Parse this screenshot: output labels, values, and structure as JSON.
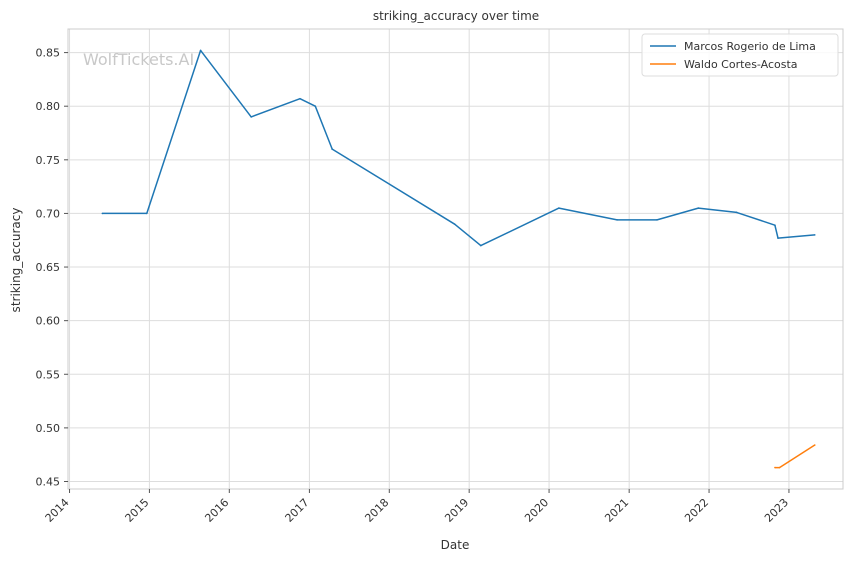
{
  "chart_data": {
    "type": "line",
    "title": "striking_accuracy over time",
    "xlabel": "Date",
    "ylabel": "striking_accuracy",
    "watermark": "WolfTickets.AI",
    "xlim": [
      "2013-12-25",
      "2023-09-05"
    ],
    "ylim": [
      0.443,
      0.872
    ],
    "x_ticks": [
      "2014",
      "2015",
      "2016",
      "2017",
      "2018",
      "2019",
      "2020",
      "2021",
      "2022",
      "2023"
    ],
    "y_ticks": [
      "0.45",
      "0.50",
      "0.55",
      "0.60",
      "0.65",
      "0.70",
      "0.75",
      "0.80",
      "0.85"
    ],
    "grid": true,
    "legend_position": "top-right",
    "series": [
      {
        "name": "Marcos Rogerio de Lima",
        "color": "#1f77b4",
        "points": [
          {
            "x": "2014-05-31",
            "y": 0.7
          },
          {
            "x": "2014-12-20",
            "y": 0.7
          },
          {
            "x": "2015-08-23",
            "y": 0.852
          },
          {
            "x": "2016-04-10",
            "y": 0.79
          },
          {
            "x": "2016-11-19",
            "y": 0.807
          },
          {
            "x": "2017-01-28",
            "y": 0.8
          },
          {
            "x": "2017-04-15",
            "y": 0.76
          },
          {
            "x": "2018-10-27",
            "y": 0.69
          },
          {
            "x": "2019-02-23",
            "y": 0.67
          },
          {
            "x": "2020-02-15",
            "y": 0.705
          },
          {
            "x": "2020-11-07",
            "y": 0.694
          },
          {
            "x": "2021-05-08",
            "y": 0.694
          },
          {
            "x": "2021-11-13",
            "y": 0.705
          },
          {
            "x": "2022-05-07",
            "y": 0.701
          },
          {
            "x": "2022-10-29",
            "y": 0.689
          },
          {
            "x": "2022-11-12",
            "y": 0.677
          },
          {
            "x": "2023-04-29",
            "y": 0.68
          }
        ]
      },
      {
        "name": "Waldo Cortes-Acosta",
        "color": "#ff7f0e",
        "points": [
          {
            "x": "2022-10-29",
            "y": 0.463
          },
          {
            "x": "2022-11-19",
            "y": 0.463
          },
          {
            "x": "2023-04-29",
            "y": 0.484
          }
        ]
      }
    ]
  }
}
